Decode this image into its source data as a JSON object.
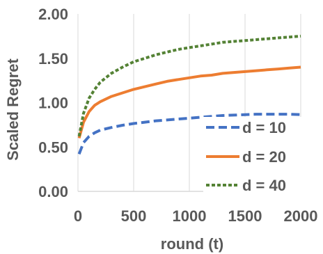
{
  "chart_data": {
    "type": "line",
    "title": "",
    "xlabel": "round (t)",
    "ylabel": "Scaled Regret",
    "xlim": [
      0,
      2000
    ],
    "ylim": [
      0,
      2
    ],
    "xticks": [
      0,
      500,
      1000,
      1500,
      2000
    ],
    "xtick_labels": [
      "0",
      "500",
      "1000",
      "1500",
      "2000"
    ],
    "yticks": [
      0,
      0.5,
      1,
      1.5,
      2
    ],
    "ytick_labels": [
      "0.00",
      "0.50",
      "1.00",
      "1.50",
      "2.00"
    ],
    "grid": "vertical",
    "legend_position": "bottom-right",
    "x": [
      10,
      50,
      100,
      150,
      200,
      300,
      400,
      500,
      600,
      700,
      800,
      900,
      1000,
      1100,
      1200,
      1300,
      1400,
      1500,
      1600,
      1700,
      1800,
      1900,
      2000
    ],
    "series": [
      {
        "name": "d = 10",
        "color": "#4472c4",
        "dash": "long-dash",
        "values": [
          0.42,
          0.55,
          0.62,
          0.66,
          0.69,
          0.72,
          0.745,
          0.765,
          0.78,
          0.795,
          0.805,
          0.815,
          0.825,
          0.835,
          0.845,
          0.855,
          0.86,
          0.865,
          0.87,
          0.87,
          0.87,
          0.87,
          0.865
        ]
      },
      {
        "name": "d = 20",
        "color": "#ed7d31",
        "dash": "solid",
        "values": [
          0.6,
          0.78,
          0.9,
          0.97,
          1.01,
          1.07,
          1.11,
          1.15,
          1.18,
          1.21,
          1.24,
          1.26,
          1.28,
          1.3,
          1.31,
          1.33,
          1.34,
          1.35,
          1.36,
          1.37,
          1.38,
          1.39,
          1.4
        ]
      },
      {
        "name": "d = 40",
        "color": "#548235",
        "dash": "short-dash",
        "values": [
          0.62,
          0.88,
          1.05,
          1.15,
          1.23,
          1.33,
          1.4,
          1.46,
          1.5,
          1.54,
          1.57,
          1.6,
          1.62,
          1.64,
          1.66,
          1.68,
          1.69,
          1.7,
          1.71,
          1.72,
          1.73,
          1.74,
          1.75
        ]
      }
    ]
  }
}
